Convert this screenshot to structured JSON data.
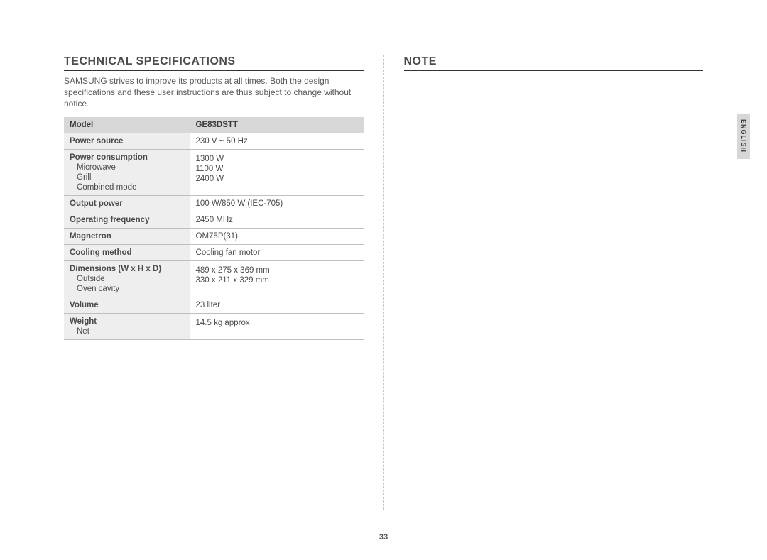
{
  "page_number": "33",
  "side_tab": "ENGLISH",
  "left": {
    "heading": "TECHNICAL SPECIFICATIONS",
    "intro": "SAMSUNG strives to improve its products at all times. Both the design specifications and these user instructions are thus subject to change without notice.",
    "table": {
      "columns": [
        "Model",
        "GE83DSTT"
      ],
      "rows": [
        {
          "label": "Power source",
          "subs": [],
          "value": "230 V ~ 50 Hz",
          "value_subs": []
        },
        {
          "label": "Power consumption",
          "subs": [
            "Microwave",
            "Grill",
            "Combined mode"
          ],
          "value": "",
          "value_subs": [
            "1300 W",
            "1100 W",
            "2400 W"
          ]
        },
        {
          "label": "Output power",
          "subs": [],
          "value": "100 W/850 W (IEC-705)",
          "value_subs": []
        },
        {
          "label": "Operating frequency",
          "subs": [],
          "value": "2450 MHz",
          "value_subs": []
        },
        {
          "label": "Magnetron",
          "subs": [],
          "value": "OM75P(31)",
          "value_subs": []
        },
        {
          "label": "Cooling method",
          "subs": [],
          "value": "Cooling fan motor",
          "value_subs": []
        },
        {
          "label": "Dimensions (W x H x D)",
          "subs": [
            "Outside",
            "Oven cavity"
          ],
          "value": "",
          "value_subs": [
            "489 x 275 x 369 mm",
            "330 x 211 x 329 mm"
          ]
        },
        {
          "label": "Volume",
          "subs": [],
          "value": "23 liter",
          "value_subs": []
        },
        {
          "label": "Weight",
          "subs": [
            "Net"
          ],
          "value": "",
          "value_subs": [
            "14.5 kg approx"
          ]
        }
      ]
    }
  },
  "right": {
    "heading": "NOTE"
  },
  "colors": {
    "text": "#333333",
    "muted": "#5a5a5a",
    "rule": "#333333",
    "row_border": "#bfbfbf",
    "label_bg": "#eeeeee",
    "header_bg": "#d7d7d7",
    "side_tab_bg": "#d7d7d7",
    "divider": "#c7c7c7",
    "page_bg": "#ffffff"
  },
  "typography": {
    "heading_fontsize": 16,
    "body_fontsize": 12,
    "table_fontsize": 11.5,
    "pagenum_fontsize": 11,
    "sidetab_fontsize": 9
  }
}
